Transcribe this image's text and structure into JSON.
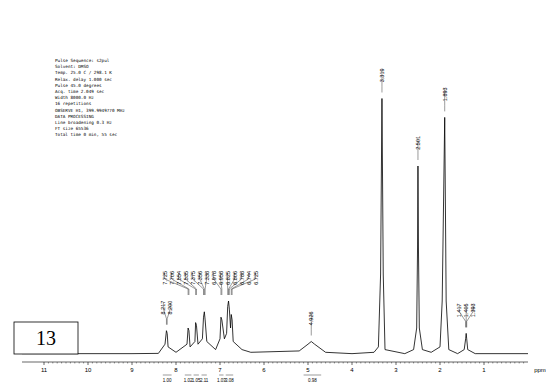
{
  "chart_data": {
    "type": "line",
    "xlabel": "ppm",
    "x": [
      11.5,
      11,
      10,
      9,
      8.4,
      8.25,
      8.217,
      8.2,
      8.18,
      8.0,
      7.75,
      7.725,
      7.706,
      7.68,
      7.57,
      7.554,
      7.535,
      7.5,
      7.4,
      7.375,
      7.356,
      7.338,
      7.3,
      7.1,
      7.0,
      6.978,
      6.958,
      6.9,
      6.85,
      6.825,
      6.806,
      6.788,
      6.76,
      6.744,
      6.725,
      6.7,
      6.5,
      6.3,
      5.2,
      5.0,
      4.926,
      4.85,
      4.6,
      4.0,
      3.5,
      3.4,
      3.35,
      3.319,
      3.29,
      3.25,
      2.8,
      2.6,
      2.53,
      2.51,
      2.501,
      2.49,
      2.47,
      2.4,
      2.2,
      2.0,
      1.95,
      1.893,
      1.86,
      1.8,
      1.6,
      1.45,
      1.417,
      1.405,
      1.393,
      1.37,
      1.2,
      0.5,
      0
    ],
    "values": [
      0.5,
      0.5,
      0.5,
      0.5,
      0.6,
      4,
      9,
      8,
      3,
      1,
      4,
      10,
      9,
      3,
      5,
      12,
      11,
      4,
      6,
      14,
      16,
      13,
      5,
      2,
      6,
      14,
      13,
      6,
      8,
      18,
      20,
      17,
      10,
      15,
      13,
      5,
      2,
      1,
      1.5,
      4,
      5,
      4,
      1,
      0.5,
      1,
      3,
      30,
      95,
      30,
      2,
      0.5,
      2,
      10,
      40,
      70,
      40,
      10,
      2,
      1,
      3,
      20,
      88,
      20,
      2,
      0.5,
      2,
      6,
      8,
      6,
      2,
      0.5,
      0.5,
      0.5
    ],
    "xlim": [
      11.5,
      0
    ],
    "ylim": [
      0,
      100
    ],
    "xticks": [
      11,
      10,
      9,
      8,
      7,
      6,
      5,
      4,
      3,
      2,
      1
    ],
    "log": "x_reversed_none",
    "tick_labels": "x",
    "grid": false,
    "color": "#000000",
    "title": "13",
    "header_lines": [
      "Pulse Sequence: s2pul",
      "Solvent: DMSO",
      "Temp. 25.0 C / 298.1 K",
      "Relax. delay 1.000 sec",
      "Pulse 45.0 degrees",
      "Acq. time 2.049 sec",
      "Width 8000.0 Hz",
      "16 repetitions",
      "OBSERVE H1, 399.9949770 MHz",
      "DATA PROCESSING",
      "Line broadening 0.3 Hz",
      "FT size 65536",
      "Total time 0 min, 55 sec"
    ],
    "annotations": [
      {
        "text": "8.217",
        "x": 8.217
      },
      {
        "text": "8.200",
        "x": 8.2
      },
      {
        "text": "7.725",
        "x": 7.725
      },
      {
        "text": "7.706",
        "x": 7.706
      },
      {
        "text": "7.554",
        "x": 7.554
      },
      {
        "text": "7.535",
        "x": 7.535
      },
      {
        "text": "7.375",
        "x": 7.375
      },
      {
        "text": "7.356",
        "x": 7.356
      },
      {
        "text": "7.338",
        "x": 7.338
      },
      {
        "text": "6.978",
        "x": 6.978
      },
      {
        "text": "6.958",
        "x": 6.958
      },
      {
        "text": "6.825",
        "x": 6.825
      },
      {
        "text": "6.806",
        "x": 6.806
      },
      {
        "text": "6.788",
        "x": 6.788
      },
      {
        "text": "6.744",
        "x": 6.744
      },
      {
        "text": "6.725",
        "x": 6.725
      },
      {
        "text": "4.926",
        "x": 4.926
      },
      {
        "text": "3.319",
        "x": 3.319
      },
      {
        "text": "2.501",
        "x": 2.501
      },
      {
        "text": "1.893",
        "x": 1.893
      },
      {
        "text": "1.417",
        "x": 1.417
      },
      {
        "text": "1.405",
        "x": 1.405
      },
      {
        "text": "1.393",
        "x": 1.393
      }
    ],
    "integrals": [
      {
        "label": "1.00",
        "from": 8.3,
        "to": 8.1
      },
      {
        "label": "1.02",
        "from": 7.8,
        "to": 7.65
      },
      {
        "label": "1.05",
        "from": 7.6,
        "to": 7.48
      },
      {
        "label": "2.11",
        "from": 7.42,
        "to": 7.3
      },
      {
        "label": "1.03",
        "from": 7.02,
        "to": 6.92
      },
      {
        "label": "3.08",
        "from": 6.87,
        "to": 6.7
      },
      {
        "label": "0.98",
        "from": 5.1,
        "to": 4.7
      }
    ]
  }
}
